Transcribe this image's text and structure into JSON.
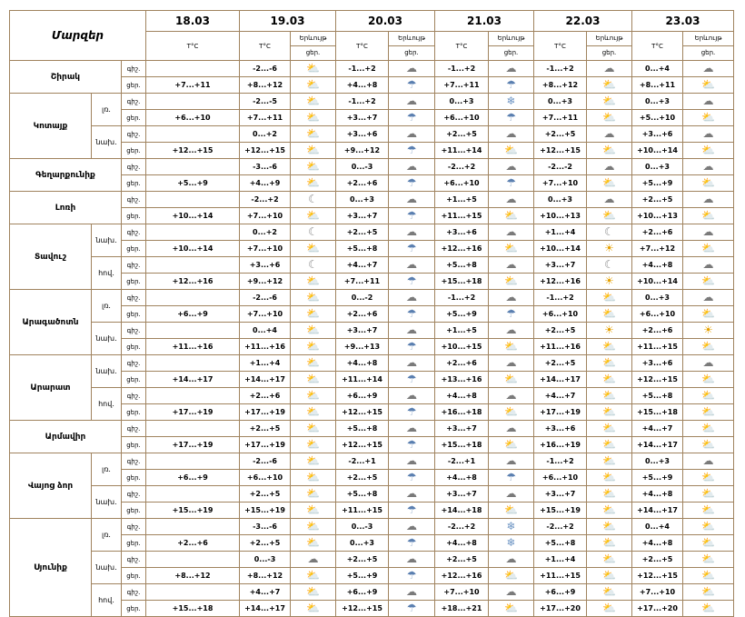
{
  "title": "Մարզեր",
  "dates": [
    "18.03",
    "19.03",
    "20.03",
    "21.03",
    "22.03",
    "23.03"
  ],
  "col_temp": "T°C",
  "col_phen": "Երևույթ",
  "col_day": "ցեր.",
  "col_night": "գիշ.",
  "rows": [
    {
      "province": "Շիրակ",
      "part": "",
      "tod": "գիշ.",
      "temps": [
        "",
        "-2...-6",
        "-1...+2",
        "-1...+2",
        "-1...+2",
        "0...+4"
      ],
      "icons": [
        "partly",
        "partly",
        "cloudy",
        "cloudy",
        "cloudy",
        "cloudy"
      ]
    },
    {
      "province": "",
      "part": "",
      "tod": "ցեր.",
      "temps": [
        "+7...+11",
        "+8...+12",
        "+4...+8",
        "+7...+11",
        "+8...+12",
        "+8...+11"
      ],
      "icons": [
        "partly",
        "partly",
        "rain",
        "rain",
        "partly",
        "partly"
      ]
    },
    {
      "province": "Կոտայք",
      "part": "լռ.",
      "tod": "գիշ.",
      "temps": [
        "",
        "-2...-5",
        "-1...+2",
        "0...+3",
        "0...+3",
        "0...+3"
      ],
      "icons": [
        "partly",
        "partly",
        "cloudy",
        "snow",
        "partly",
        "cloudy"
      ]
    },
    {
      "province": "",
      "part": "",
      "tod": "ցեր.",
      "temps": [
        "+6...+10",
        "+7...+11",
        "+3...+7",
        "+6...+10",
        "+7...+11",
        "+5...+10"
      ],
      "icons": [
        "partly",
        "partly",
        "rain",
        "rain",
        "partly",
        "partly"
      ]
    },
    {
      "province": "",
      "part": "նախ.",
      "tod": "գիշ.",
      "temps": [
        "",
        "0...+2",
        "+3...+6",
        "+2...+5",
        "+2...+5",
        "+3...+6"
      ],
      "icons": [
        "partly",
        "partly",
        "cloudy",
        "cloudy",
        "cloudy",
        "cloudy"
      ]
    },
    {
      "province": "",
      "part": "",
      "tod": "ցեր.",
      "temps": [
        "+12...+15",
        "+12...+15",
        "+9...+12",
        "+11...+14",
        "+12...+15",
        "+10...+14"
      ],
      "icons": [
        "partly",
        "partly",
        "rain",
        "partly",
        "partly",
        "partly"
      ]
    },
    {
      "province": "Գեղարքունիք",
      "part": "",
      "tod": "գիշ.",
      "temps": [
        "",
        "-3...-6",
        "0...-3",
        "-2...+2",
        "-2...-2",
        "0...+3"
      ],
      "icons": [
        "sunny",
        "partly",
        "cloudy",
        "cloudy",
        "cloudy",
        "cloudy"
      ]
    },
    {
      "province": "",
      "part": "",
      "tod": "ցեր.",
      "temps": [
        "+5...+9",
        "+4...+9",
        "+2...+6",
        "+6...+10",
        "+7...+10",
        "+5...+9"
      ],
      "icons": [
        "partly",
        "partly",
        "rain",
        "rain",
        "partly",
        "partly"
      ]
    },
    {
      "province": "Լոռի",
      "part": "",
      "tod": "գիշ.",
      "temps": [
        "",
        "-2...+2",
        "0...+3",
        "+1...+5",
        "0...+3",
        "+2...+5"
      ],
      "icons": [
        "sunny",
        "moon",
        "cloudy",
        "cloudy",
        "cloudy",
        "cloudy"
      ]
    },
    {
      "province": "",
      "part": "",
      "tod": "ցեր.",
      "temps": [
        "+10...+14",
        "+7...+10",
        "+3...+7",
        "+11...+15",
        "+10...+13",
        "+10...+13"
      ],
      "icons": [
        "sunny",
        "partly",
        "rain",
        "partly",
        "partly",
        "partly"
      ]
    },
    {
      "province": "Տավուշ",
      "part": "նախ.",
      "tod": "գիշ.",
      "temps": [
        "",
        "0...+2",
        "+2...+5",
        "+3...+6",
        "+1...+4",
        "+2...+6"
      ],
      "icons": [
        "sunny",
        "moon",
        "cloudy",
        "cloudy",
        "moon",
        "cloudy"
      ]
    },
    {
      "province": "",
      "part": "",
      "tod": "ցեր.",
      "temps": [
        "+10...+14",
        "+7...+10",
        "+5...+8",
        "+12...+16",
        "+10...+14",
        "+7...+12"
      ],
      "icons": [
        "sunny",
        "partly",
        "rain",
        "partly",
        "sunny",
        "partly"
      ]
    },
    {
      "province": "",
      "part": "հով.",
      "tod": "գիշ.",
      "temps": [
        "",
        "+3...+6",
        "+4...+7",
        "+5...+8",
        "+3...+7",
        "+4...+8"
      ],
      "icons": [
        "sunny",
        "moon",
        "cloudy",
        "cloudy",
        "moon",
        "cloudy"
      ]
    },
    {
      "province": "",
      "part": "",
      "tod": "ցեր.",
      "temps": [
        "+12...+16",
        "+9...+12",
        "+7...+11",
        "+15...+18",
        "+12...+16",
        "+10...+14"
      ],
      "icons": [
        "sunny",
        "partly",
        "rain",
        "partly",
        "sunny",
        "partly"
      ]
    },
    {
      "province": "Արագածոտն",
      "part": "լռ.",
      "tod": "գիշ.",
      "temps": [
        "",
        "-2...-6",
        "0...-2",
        "-1...+2",
        "-1...+2",
        "0...+3"
      ],
      "icons": [
        "partly",
        "partly",
        "cloudy",
        "cloudy",
        "partly",
        "cloudy"
      ]
    },
    {
      "province": "",
      "part": "",
      "tod": "ցեր.",
      "temps": [
        "+6...+9",
        "+7...+10",
        "+2...+6",
        "+5...+9",
        "+6...+10",
        "+6...+10"
      ],
      "icons": [
        "partly",
        "partly",
        "rain",
        "rain",
        "partly",
        "partly"
      ]
    },
    {
      "province": "",
      "part": "նախ.",
      "tod": "գիշ.",
      "temps": [
        "",
        "0...+4",
        "+3...+7",
        "+1...+5",
        "+2...+5",
        "+2...+6"
      ],
      "icons": [
        "partly",
        "partly",
        "cloudy",
        "cloudy",
        "sunny",
        "sunny"
      ]
    },
    {
      "province": "",
      "part": "",
      "tod": "ցեր.",
      "temps": [
        "+11...+16",
        "+11...+16",
        "+9...+13",
        "+10...+15",
        "+11...+16",
        "+11...+15"
      ],
      "icons": [
        "partly",
        "partly",
        "rain",
        "partly",
        "partly",
        "partly"
      ]
    },
    {
      "province": "Արարատ",
      "part": "նախ.",
      "tod": "գիշ.",
      "temps": [
        "",
        "+1...+4",
        "+4...+8",
        "+2...+6",
        "+2...+5",
        "+3...+6"
      ],
      "icons": [
        "partly",
        "partly",
        "cloudy",
        "cloudy",
        "partly",
        "cloudy"
      ]
    },
    {
      "province": "",
      "part": "",
      "tod": "ցեր.",
      "temps": [
        "+14...+17",
        "+14...+17",
        "+11...+14",
        "+13...+16",
        "+14...+17",
        "+12...+15"
      ],
      "icons": [
        "partly",
        "partly",
        "rain",
        "partly",
        "partly",
        "partly"
      ]
    },
    {
      "province": "",
      "part": "հով.",
      "tod": "գիշ.",
      "temps": [
        "",
        "+2...+6",
        "+6...+9",
        "+4...+8",
        "+4...+7",
        "+5...+8"
      ],
      "icons": [
        "partly",
        "partly",
        "cloudy",
        "cloudy",
        "partly",
        "partly"
      ]
    },
    {
      "province": "",
      "part": "",
      "tod": "ցեր.",
      "temps": [
        "+17...+19",
        "+17...+19",
        "+12...+15",
        "+16...+18",
        "+17...+19",
        "+15...+18"
      ],
      "icons": [
        "partly",
        "partly",
        "rain",
        "partly",
        "partly",
        "partly"
      ]
    },
    {
      "province": "Արմավիր",
      "part": "",
      "tod": "գիշ.",
      "temps": [
        "",
        "+2...+5",
        "+5...+8",
        "+3...+7",
        "+3...+6",
        "+4...+7"
      ],
      "icons": [
        "partly",
        "partly",
        "cloudy",
        "cloudy",
        "partly",
        "partly"
      ]
    },
    {
      "province": "",
      "part": "",
      "tod": "ցեր.",
      "temps": [
        "+17...+19",
        "+17...+19",
        "+12...+15",
        "+15...+18",
        "+16...+19",
        "+14...+17"
      ],
      "icons": [
        "partly",
        "partly",
        "rain",
        "partly",
        "partly",
        "partly"
      ]
    },
    {
      "province": "Վայոց ձոր",
      "part": "լռ.",
      "tod": "գիշ.",
      "temps": [
        "",
        "-2...-6",
        "-2...+1",
        "-2...+1",
        "-1...+2",
        "0...+3"
      ],
      "icons": [
        "sunny",
        "partly",
        "cloudy",
        "cloudy",
        "partly",
        "cloudy"
      ]
    },
    {
      "province": "",
      "part": "",
      "tod": "ցեր.",
      "temps": [
        "+6...+9",
        "+6...+10",
        "+2...+5",
        "+4...+8",
        "+6...+10",
        "+5...+9"
      ],
      "icons": [
        "partly",
        "partly",
        "rain",
        "rain",
        "partly",
        "partly"
      ]
    },
    {
      "province": "",
      "part": "նախ.",
      "tod": "գիշ.",
      "temps": [
        "",
        "+2...+5",
        "+5...+8",
        "+3...+7",
        "+3...+7",
        "+4...+8"
      ],
      "icons": [
        "partly",
        "partly",
        "cloudy",
        "cloudy",
        "partly",
        "partly"
      ]
    },
    {
      "province": "",
      "part": "",
      "tod": "ցեր.",
      "temps": [
        "+15...+19",
        "+15...+19",
        "+11...+15",
        "+14...+18",
        "+15...+19",
        "+14...+17"
      ],
      "icons": [
        "partly",
        "partly",
        "rain",
        "partly",
        "partly",
        "partly"
      ]
    },
    {
      "province": "Սյունիք",
      "part": "լռ.",
      "tod": "գիշ.",
      "temps": [
        "",
        "-3...-6",
        "0...-3",
        "-2...+2",
        "-2...+2",
        "0...+4"
      ],
      "icons": [
        "partly",
        "partly",
        "cloudy",
        "snow",
        "partly",
        "partly"
      ]
    },
    {
      "province": "",
      "part": "",
      "tod": "ցեր.",
      "temps": [
        "+2...+6",
        "+2...+5",
        "0...+3",
        "+4...+8",
        "+5...+8",
        "+4...+8"
      ],
      "icons": [
        "partly",
        "partly",
        "rain",
        "snow",
        "partly",
        "partly"
      ]
    },
    {
      "province": "",
      "part": "նախ.",
      "tod": "գիշ.",
      "temps": [
        "",
        "0...-3",
        "+2...+5",
        "+2...+5",
        "+1...+4",
        "+2...+5"
      ],
      "icons": [
        "partly",
        "cloudy",
        "cloudy",
        "cloudy",
        "partly",
        "partly"
      ]
    },
    {
      "province": "",
      "part": "",
      "tod": "ցեր.",
      "temps": [
        "+8...+12",
        "+8...+12",
        "+5...+9",
        "+12...+16",
        "+11...+15",
        "+12...+15"
      ],
      "icons": [
        "partly",
        "partly",
        "rain",
        "partly",
        "partly",
        "partly"
      ]
    },
    {
      "province": "",
      "part": "հով.",
      "tod": "գիշ.",
      "temps": [
        "",
        "+4...+7",
        "+6...+9",
        "+7...+10",
        "+6...+9",
        "+7...+10"
      ],
      "icons": [
        "partly",
        "partly",
        "cloudy",
        "cloudy",
        "partly",
        "partly"
      ]
    },
    {
      "province": "",
      "part": "",
      "tod": "ցեր.",
      "temps": [
        "+15...+18",
        "+14...+17",
        "+12...+15",
        "+18...+21",
        "+17...+20",
        "+17...+20"
      ],
      "icons": [
        "partly",
        "partly",
        "rain",
        "partly",
        "partly",
        "partly"
      ]
    }
  ]
}
